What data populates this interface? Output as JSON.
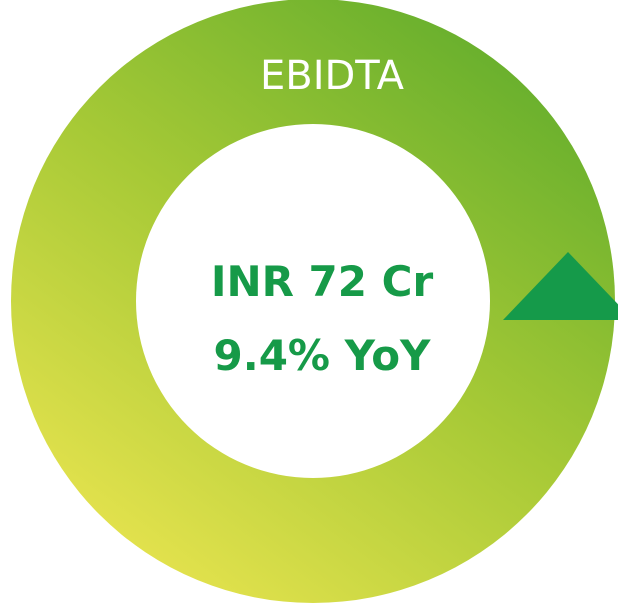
{
  "header": {
    "title": "EBIDTA"
  },
  "metric": {
    "value": "INR 72 Cr",
    "change": "9.4% YoY"
  }
}
